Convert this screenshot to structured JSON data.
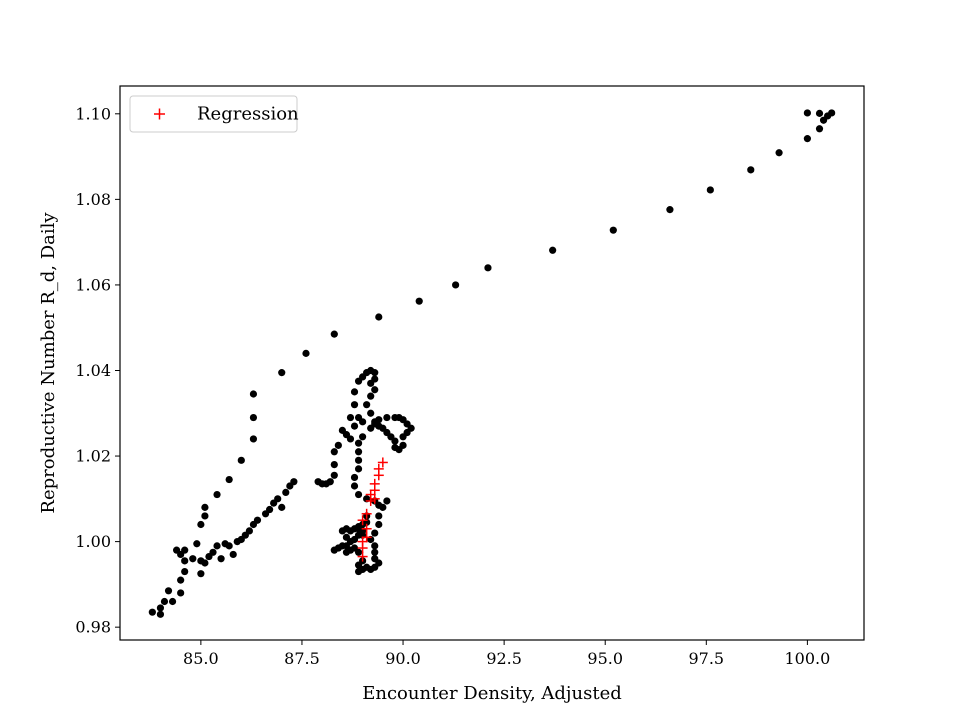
{
  "chart_data": {
    "type": "scatter",
    "title": "",
    "xlabel": "Encounter Density, Adjusted",
    "ylabel": "Reproductive Number R_d, Daily",
    "xlim": [
      83.0,
      101.4
    ],
    "ylim": [
      0.977,
      1.1065
    ],
    "x_ticks": [
      85.0,
      87.5,
      90.0,
      92.5,
      95.0,
      97.5,
      100.0
    ],
    "x_tick_labels": [
      "85.0",
      "87.5",
      "90.0",
      "92.5",
      "95.0",
      "97.5",
      "100.0"
    ],
    "y_ticks": [
      0.98,
      1.0,
      1.02,
      1.04,
      1.06,
      1.08,
      1.1
    ],
    "y_tick_labels": [
      "0.98",
      "1.00",
      "1.02",
      "1.04",
      "1.06",
      "1.08",
      "1.10"
    ],
    "grid": false,
    "legend": {
      "position": "top-left",
      "entries": [
        "Regression"
      ]
    },
    "series": [
      {
        "name": "",
        "marker": "circle",
        "color": "#000000",
        "points": [
          [
            83.8,
            0.9835
          ],
          [
            84.0,
            0.9845
          ],
          [
            84.0,
            0.983
          ],
          [
            84.1,
            0.986
          ],
          [
            84.2,
            0.9885
          ],
          [
            84.3,
            0.986
          ],
          [
            84.5,
            0.988
          ],
          [
            84.5,
            0.991
          ],
          [
            84.6,
            0.993
          ],
          [
            84.5,
            0.997
          ],
          [
            84.4,
            0.998
          ],
          [
            84.6,
            0.998
          ],
          [
            84.6,
            0.9955
          ],
          [
            84.9,
            0.9995
          ],
          [
            84.8,
            0.996
          ],
          [
            85.0,
            0.9955
          ],
          [
            85.1,
            0.995
          ],
          [
            85.0,
            0.9925
          ],
          [
            85.2,
            0.9965
          ],
          [
            85.3,
            0.9975
          ],
          [
            85.4,
            0.999
          ],
          [
            85.5,
            0.996
          ],
          [
            85.6,
            0.9995
          ],
          [
            85.7,
            0.999
          ],
          [
            85.8,
            0.997
          ],
          [
            85.9,
            1.0
          ],
          [
            86.0,
            1.0005
          ],
          [
            86.1,
            1.0015
          ],
          [
            86.2,
            1.0025
          ],
          [
            86.3,
            1.004
          ],
          [
            86.4,
            1.005
          ],
          [
            86.6,
            1.0065
          ],
          [
            86.7,
            1.0075
          ],
          [
            86.8,
            1.009
          ],
          [
            86.9,
            1.01
          ],
          [
            87.0,
            1.008
          ],
          [
            87.1,
            1.0115
          ],
          [
            87.2,
            1.013
          ],
          [
            87.3,
            1.014
          ],
          [
            85.0,
            1.004
          ],
          [
            85.1,
            1.006
          ],
          [
            85.1,
            1.008
          ],
          [
            85.4,
            1.011
          ],
          [
            85.7,
            1.0145
          ],
          [
            86.0,
            1.019
          ],
          [
            86.3,
            1.024
          ],
          [
            86.3,
            1.029
          ],
          [
            86.3,
            1.0345
          ],
          [
            87.0,
            1.0395
          ],
          [
            87.6,
            1.044
          ],
          [
            88.3,
            1.0485
          ],
          [
            89.4,
            1.0525
          ],
          [
            90.4,
            1.0562
          ],
          [
            91.3,
            1.06
          ],
          [
            92.1,
            1.064
          ],
          [
            93.7,
            1.0681
          ],
          [
            95.2,
            1.0728
          ],
          [
            96.6,
            1.0776
          ],
          [
            97.6,
            1.0822
          ],
          [
            98.6,
            1.0869
          ],
          [
            99.3,
            1.0909
          ],
          [
            100.0,
            1.0942
          ],
          [
            100.0,
            1.1002
          ],
          [
            100.3,
            1.0965
          ],
          [
            100.3,
            1.1001
          ],
          [
            100.4,
            1.0985
          ],
          [
            100.5,
            1.0995
          ],
          [
            100.6,
            1.1002
          ],
          [
            87.9,
            1.014
          ],
          [
            88.0,
            1.0135
          ],
          [
            88.1,
            1.0135
          ],
          [
            88.2,
            1.014
          ],
          [
            88.3,
            1.0155
          ],
          [
            88.3,
            1.018
          ],
          [
            88.3,
            1.021
          ],
          [
            88.4,
            1.0225
          ],
          [
            88.5,
            1.026
          ],
          [
            88.6,
            1.025
          ],
          [
            88.7,
            1.024
          ],
          [
            88.7,
            1.029
          ],
          [
            88.8,
            1.032
          ],
          [
            88.9,
            1.029
          ],
          [
            88.8,
            1.027
          ],
          [
            88.8,
            1.035
          ],
          [
            88.9,
            1.0375
          ],
          [
            89.0,
            1.0385
          ],
          [
            89.1,
            1.0395
          ],
          [
            89.2,
            1.04
          ],
          [
            89.3,
            1.0395
          ],
          [
            89.3,
            1.038
          ],
          [
            89.2,
            1.037
          ],
          [
            89.3,
            1.0355
          ],
          [
            89.2,
            1.034
          ],
          [
            89.1,
            1.032
          ],
          [
            89.2,
            1.03
          ],
          [
            89.0,
            1.028
          ],
          [
            89.3,
            1.028
          ],
          [
            89.4,
            1.027
          ],
          [
            89.5,
            1.0265
          ],
          [
            89.6,
            1.0255
          ],
          [
            89.7,
            1.0245
          ],
          [
            89.8,
            1.0235
          ],
          [
            89.8,
            1.022
          ],
          [
            89.9,
            1.0215
          ],
          [
            90.0,
            1.0225
          ],
          [
            90.0,
            1.0245
          ],
          [
            90.1,
            1.0255
          ],
          [
            90.2,
            1.0265
          ],
          [
            90.1,
            1.0275
          ],
          [
            90.0,
            1.0285
          ],
          [
            89.9,
            1.029
          ],
          [
            89.8,
            1.029
          ],
          [
            89.6,
            1.029
          ],
          [
            89.4,
            1.0285
          ],
          [
            89.3,
            1.0275
          ],
          [
            89.2,
            1.0265
          ],
          [
            89.0,
            1.0245
          ],
          [
            88.9,
            1.023
          ],
          [
            88.9,
            1.021
          ],
          [
            88.9,
            1.019
          ],
          [
            88.9,
            1.017
          ],
          [
            88.8,
            1.015
          ],
          [
            88.8,
            1.013
          ],
          [
            88.9,
            1.011
          ],
          [
            89.1,
            1.01
          ],
          [
            89.3,
            1.0095
          ],
          [
            89.4,
            1.0085
          ],
          [
            89.6,
            1.0095
          ],
          [
            89.5,
            1.008
          ],
          [
            89.4,
            1.006
          ],
          [
            89.4,
            1.004
          ],
          [
            89.3,
            1.002
          ],
          [
            89.2,
            1.0005
          ],
          [
            89.3,
            0.999
          ],
          [
            89.3,
            0.9975
          ],
          [
            89.3,
            0.996
          ],
          [
            89.4,
            0.995
          ],
          [
            89.3,
            0.994
          ],
          [
            89.2,
            0.9935
          ],
          [
            89.1,
            0.994
          ],
          [
            89.0,
            0.9935
          ],
          [
            88.9,
            0.993
          ],
          [
            88.9,
            0.9945
          ],
          [
            89.0,
            0.9955
          ],
          [
            88.9,
            0.9975
          ],
          [
            88.8,
            0.9985
          ],
          [
            88.7,
            0.998
          ],
          [
            88.6,
            0.9975
          ],
          [
            88.6,
            0.999
          ],
          [
            88.7,
            1.0
          ],
          [
            88.6,
            1.001
          ],
          [
            88.7,
            1.0025
          ],
          [
            88.8,
            1.003
          ],
          [
            88.9,
            1.0035
          ],
          [
            89.0,
            1.004
          ],
          [
            89.1,
            1.0045
          ],
          [
            89.1,
            1.006
          ],
          [
            89.0,
            1.0025
          ],
          [
            88.9,
            1.0015
          ],
          [
            88.8,
            1.0005
          ],
          [
            88.5,
            0.999
          ],
          [
            88.4,
            0.9985
          ],
          [
            88.3,
            0.998
          ],
          [
            88.5,
            1.0025
          ],
          [
            88.6,
            1.003
          ],
          [
            88.9,
            1.003
          ],
          [
            89.0,
            1.0015
          ]
        ]
      },
      {
        "name": "Regression",
        "marker": "plus",
        "color": "#ff0000",
        "points": [
          [
            89.0,
            0.9965
          ],
          [
            89.0,
            0.9985
          ],
          [
            89.0,
            1.0
          ],
          [
            89.1,
            1.001
          ],
          [
            89.1,
            1.003
          ],
          [
            89.0,
            1.005
          ],
          [
            89.1,
            1.0065
          ],
          [
            89.2,
            1.0095
          ],
          [
            89.3,
            1.01
          ],
          [
            89.2,
            1.011
          ],
          [
            89.3,
            1.012
          ],
          [
            89.3,
            1.0135
          ],
          [
            89.4,
            1.0155
          ],
          [
            89.4,
            1.017
          ],
          [
            89.5,
            1.0185
          ]
        ]
      }
    ]
  }
}
